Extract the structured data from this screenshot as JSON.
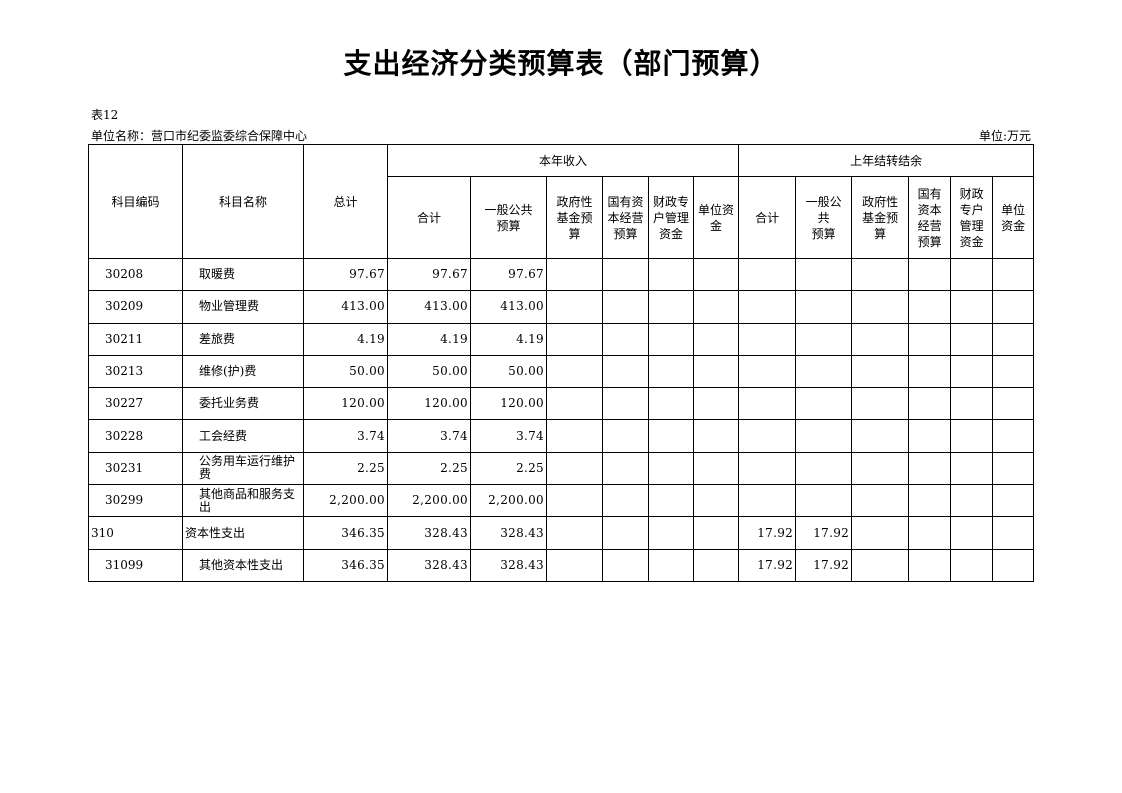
{
  "title": "支出经济分类预算表（部门预算）",
  "table_no": "表12",
  "unit_name": "单位名称：营口市纪委监委综合保障中心",
  "unit": "单位:万元",
  "headers": {
    "code": "科目编码",
    "name": "科目名称",
    "total": "总计",
    "current_group": "本年收入",
    "carry_group": "上年结转结余",
    "current": [
      "合计",
      "一般公共\n预算",
      "政府性\n基金预\n算",
      "国有资\n本经营\n预算",
      "财政专\n户管理\n资金",
      "单位资\n金"
    ],
    "carry": [
      "合计",
      "一般公\n共\n预算",
      "政府性\n基金预\n算",
      "国有\n资本\n经营\n预算",
      "财政\n专户\n管理\n资金",
      "单位\n资金"
    ]
  },
  "rows": [
    {
      "code": "30208",
      "name": "取暖费",
      "values": [
        "97.67",
        "97.67",
        "97.67",
        "",
        "",
        "",
        "",
        "",
        "",
        "",
        "",
        "",
        ""
      ]
    },
    {
      "code": "30209",
      "name": "物业管理费",
      "values": [
        "413.00",
        "413.00",
        "413.00",
        "",
        "",
        "",
        "",
        "",
        "",
        "",
        "",
        "",
        ""
      ]
    },
    {
      "code": "30211",
      "name": "差旅费",
      "values": [
        "4.19",
        "4.19",
        "4.19",
        "",
        "",
        "",
        "",
        "",
        "",
        "",
        "",
        "",
        ""
      ]
    },
    {
      "code": "30213",
      "name": "维修(护)费",
      "values": [
        "50.00",
        "50.00",
        "50.00",
        "",
        "",
        "",
        "",
        "",
        "",
        "",
        "",
        "",
        ""
      ]
    },
    {
      "code": "30227",
      "name": "委托业务费",
      "values": [
        "120.00",
        "120.00",
        "120.00",
        "",
        "",
        "",
        "",
        "",
        "",
        "",
        "",
        "",
        ""
      ]
    },
    {
      "code": "30228",
      "name": "工会经费",
      "values": [
        "3.74",
        "3.74",
        "3.74",
        "",
        "",
        "",
        "",
        "",
        "",
        "",
        "",
        "",
        ""
      ]
    },
    {
      "code": "30231",
      "name": "公务用车运行维护费",
      "values": [
        "2.25",
        "2.25",
        "2.25",
        "",
        "",
        "",
        "",
        "",
        "",
        "",
        "",
        "",
        ""
      ]
    },
    {
      "code": "30299",
      "name": "其他商品和服务支出",
      "values": [
        "2,200.00",
        "2,200.00",
        "2,200.00",
        "",
        "",
        "",
        "",
        "",
        "",
        "",
        "",
        "",
        ""
      ]
    },
    {
      "code": "310",
      "name": "资本性支出",
      "top": true,
      "values": [
        "346.35",
        "328.43",
        "328.43",
        "",
        "",
        "",
        "",
        "17.92",
        "17.92",
        "",
        "",
        "",
        ""
      ]
    },
    {
      "code": "31099",
      "name": "其他资本性支出",
      "values": [
        "346.35",
        "328.43",
        "328.43",
        "",
        "",
        "",
        "",
        "17.92",
        "17.92",
        "",
        "",
        "",
        ""
      ]
    }
  ]
}
